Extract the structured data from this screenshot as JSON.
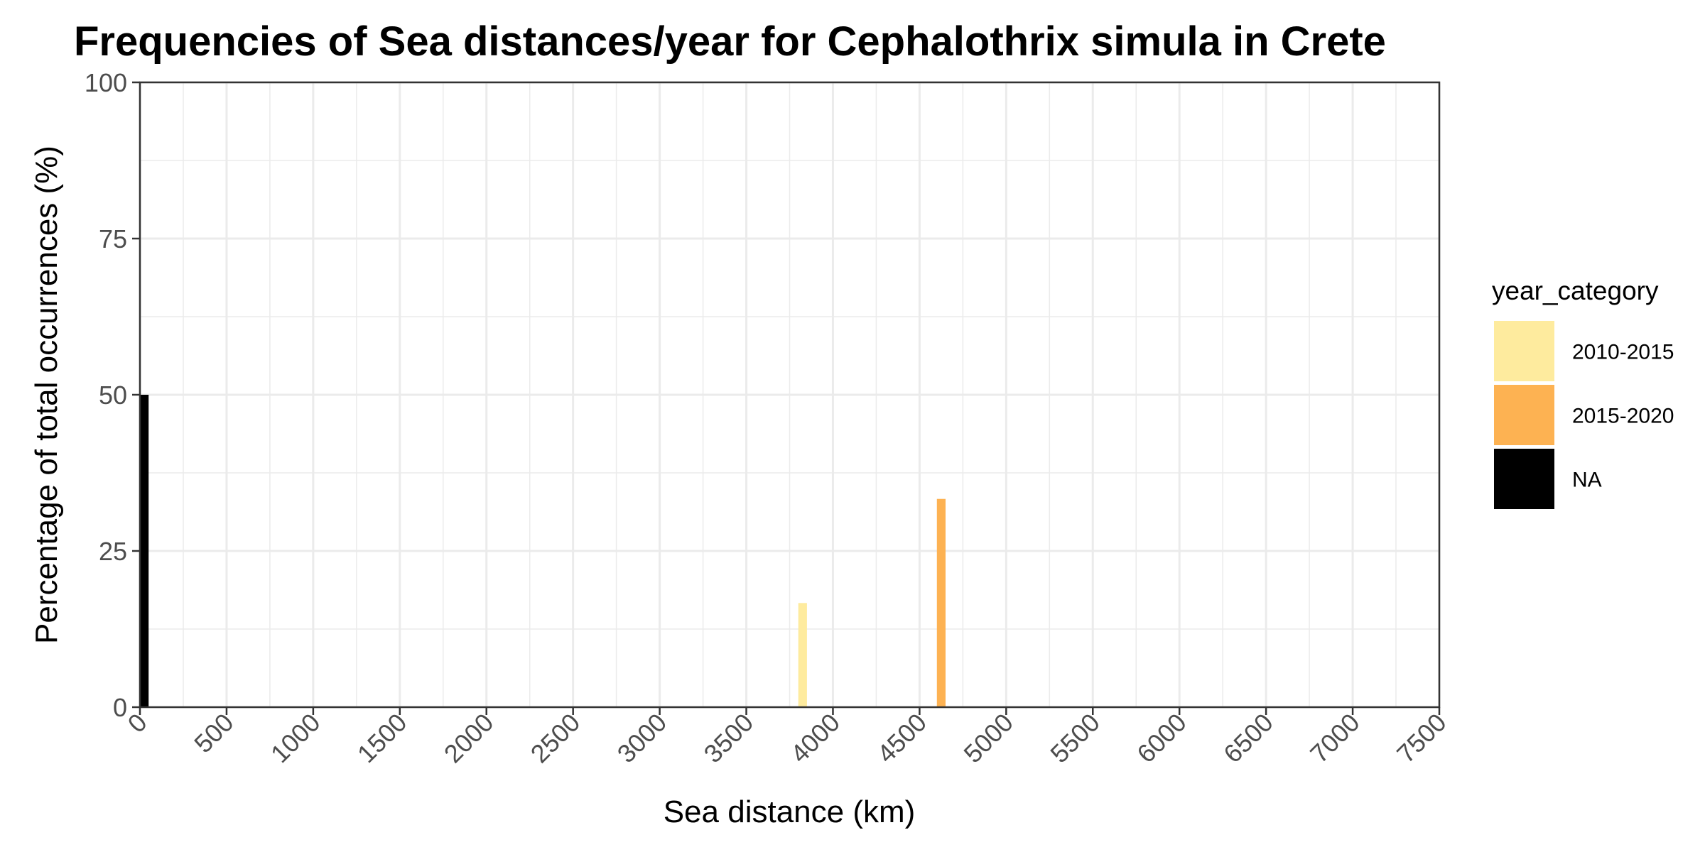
{
  "chart_data": {
    "type": "bar",
    "title": "Frequencies of Sea distances/year for Cephalothrix simula in Crete",
    "xlabel": "Sea distance (km)",
    "ylabel": "Percentage of total occurrences (%)",
    "xlim": [
      0,
      7500
    ],
    "ylim": [
      0,
      100
    ],
    "x_ticks": [
      0,
      500,
      1000,
      1500,
      2000,
      2500,
      3000,
      3500,
      4000,
      4500,
      5000,
      5500,
      6000,
      6500,
      7000,
      7500
    ],
    "x_tick_labels": [
      "0",
      "500",
      "1000",
      "1500",
      "2000",
      "2500",
      "3000",
      "3500",
      "4000",
      "4500",
      "5000",
      "5500",
      "6000",
      "6500",
      "7000",
      "7500"
    ],
    "y_ticks": [
      0,
      25,
      50,
      75,
      100
    ],
    "y_tick_labels": [
      "0",
      "25",
      "50",
      "75",
      "100"
    ],
    "grid": true,
    "bin_width": 50,
    "legend": {
      "title": "year_category",
      "position": "right",
      "entries": [
        "2010-2015",
        "2015-2020",
        "NA"
      ]
    },
    "series": [
      {
        "name": "2010-2015",
        "color": "#FEEB9E",
        "bars": [
          {
            "x": 3825,
            "value": 16.67
          }
        ]
      },
      {
        "name": "2015-2020",
        "color": "#FDB252",
        "bars": [
          {
            "x": 4625,
            "value": 33.33
          }
        ]
      },
      {
        "name": "NA",
        "color": "#000000",
        "bars": [
          {
            "x": 25,
            "value": 50
          }
        ]
      }
    ]
  }
}
